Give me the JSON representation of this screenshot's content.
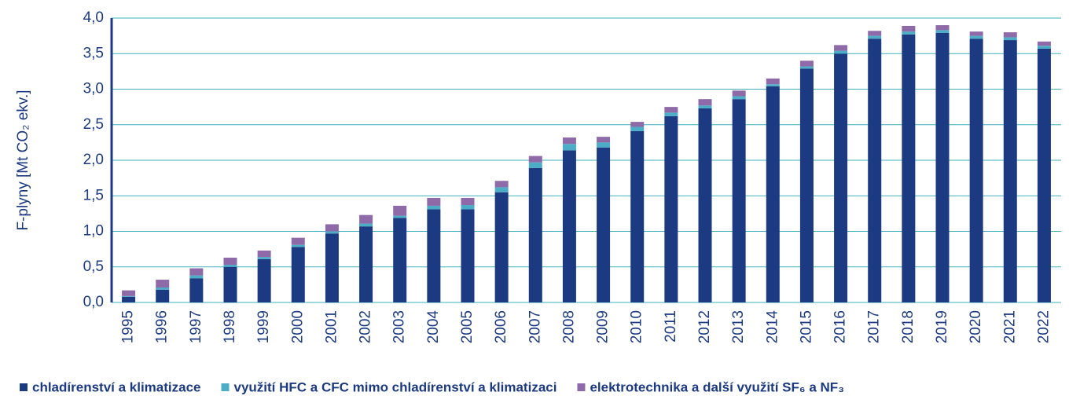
{
  "chart_data": {
    "type": "stacked_bar",
    "y_label": "F-plyny [Mt CO₂ ekv.]",
    "categories": [
      "1995",
      "1996",
      "1997",
      "1998",
      "1999",
      "2000",
      "2001",
      "2002",
      "2003",
      "2004",
      "2005",
      "2006",
      "2007",
      "2008",
      "2009",
      "2010",
      "2011",
      "2012",
      "2013",
      "2014",
      "2015",
      "2016",
      "2017",
      "2018",
      "2019",
      "2020",
      "2021",
      "2022"
    ],
    "series": [
      {
        "name": "chladírenství a klimatizace",
        "color": "#1c3a82",
        "values": [
          0.08,
          0.18,
          0.34,
          0.5,
          0.61,
          0.78,
          0.97,
          1.07,
          1.19,
          1.31,
          1.31,
          1.55,
          1.89,
          2.14,
          2.18,
          2.41,
          2.62,
          2.73,
          2.86,
          3.04,
          3.29,
          3.5,
          3.71,
          3.77,
          3.79,
          3.71,
          3.69,
          3.57
        ]
      },
      {
        "name": "využití HFC a CFC mimo chladírenství a klimatizaci",
        "color": "#4badc6",
        "values": [
          0.01,
          0.03,
          0.04,
          0.03,
          0.03,
          0.03,
          0.03,
          0.04,
          0.03,
          0.05,
          0.06,
          0.07,
          0.08,
          0.09,
          0.07,
          0.06,
          0.05,
          0.04,
          0.04,
          0.03,
          0.03,
          0.04,
          0.04,
          0.04,
          0.04,
          0.04,
          0.04,
          0.04
        ]
      },
      {
        "name": "elektrotechnika a další využití SF₆ a NF₃",
        "color": "#8e6aa8",
        "values": [
          0.08,
          0.11,
          0.1,
          0.1,
          0.09,
          0.1,
          0.1,
          0.12,
          0.14,
          0.11,
          0.1,
          0.09,
          0.09,
          0.09,
          0.08,
          0.07,
          0.08,
          0.09,
          0.08,
          0.08,
          0.08,
          0.08,
          0.07,
          0.08,
          0.07,
          0.06,
          0.07,
          0.06
        ]
      }
    ],
    "ylim": [
      0,
      4
    ],
    "yticks": [
      {
        "value": 0,
        "label": "0,0"
      },
      {
        "value": 0.5,
        "label": "0,5"
      },
      {
        "value": 1,
        "label": "1,0"
      },
      {
        "value": 1.5,
        "label": "1,5"
      },
      {
        "value": 2,
        "label": "2,0"
      },
      {
        "value": 2.5,
        "label": "2,5"
      },
      {
        "value": 3,
        "label": "3,0"
      },
      {
        "value": 3.5,
        "label": "3,5"
      },
      {
        "value": 4,
        "label": "4,0"
      }
    ],
    "grid": true
  }
}
